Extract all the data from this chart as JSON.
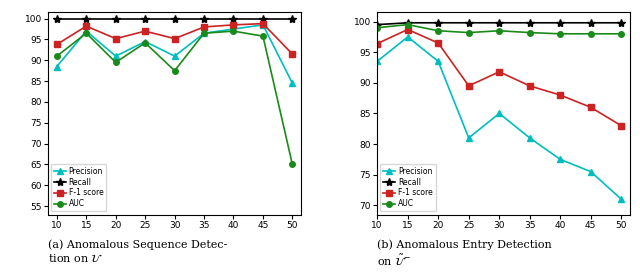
{
  "left": {
    "x": [
      10,
      15,
      20,
      25,
      30,
      35,
      40,
      45,
      50
    ],
    "precision": [
      88.5,
      97.0,
      91.0,
      94.5,
      91.0,
      96.5,
      97.5,
      98.5,
      84.5
    ],
    "recall": [
      99.9,
      99.9,
      99.9,
      99.9,
      99.9,
      99.9,
      99.9,
      99.9,
      99.9
    ],
    "f1": [
      93.8,
      98.2,
      95.2,
      97.0,
      95.2,
      98.0,
      98.5,
      98.8,
      91.5
    ],
    "auc": [
      91.0,
      96.5,
      89.5,
      94.2,
      87.5,
      96.5,
      97.0,
      95.8,
      65.0
    ],
    "ylabel_ticks": [
      55,
      60,
      65,
      70,
      75,
      80,
      85,
      90,
      95,
      100
    ],
    "ylim": [
      53,
      101.5
    ],
    "xlim": [
      8.5,
      51.5
    ]
  },
  "right": {
    "x": [
      15,
      15,
      20,
      25,
      30,
      35,
      40,
      45,
      50
    ],
    "x_vals": [
      15,
      15,
      20,
      25,
      30,
      35,
      40,
      45,
      50
    ],
    "xticks": [
      15,
      15,
      20,
      25,
      30,
      35,
      40,
      45,
      50
    ],
    "x_plot": [
      10,
      15,
      20,
      25,
      30,
      35,
      40,
      45,
      50
    ],
    "precision": [
      93.5,
      97.5,
      93.5,
      81.0,
      85.0,
      81.0,
      77.5,
      75.5,
      71.0
    ],
    "recall": [
      99.5,
      99.8,
      99.8,
      99.8,
      99.8,
      99.8,
      99.8,
      99.8,
      99.8
    ],
    "f1": [
      96.4,
      98.7,
      96.5,
      89.5,
      91.8,
      89.5,
      88.0,
      86.0,
      83.0
    ],
    "auc": [
      99.0,
      99.5,
      98.5,
      98.2,
      98.5,
      98.2,
      98.0,
      98.0,
      98.0
    ],
    "ylabel_ticks": [
      70,
      75,
      80,
      85,
      90,
      95,
      100
    ],
    "ylim": [
      68.5,
      101.5
    ],
    "xlim": [
      13.0,
      51.5
    ]
  },
  "cyan_color": "#00BEBE",
  "black_color": "#000000",
  "red_color": "#CC2222",
  "green_color": "#1A8A1A",
  "caption_left": "(a) Anomalous Sequence Detec-\ntion on $\\mathcal{U}$",
  "caption_right": "(b) Anomalous Entry Detection\non $\\tilde{\\mathcal{U}}^{-}$"
}
